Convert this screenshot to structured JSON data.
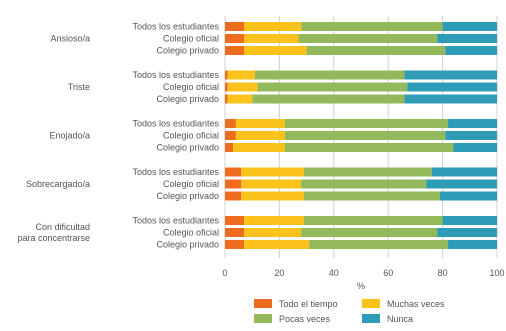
{
  "chart_data": {
    "type": "bar",
    "orientation": "horizontal",
    "stacked": true,
    "xlabel": "%",
    "xlim": [
      0,
      100
    ],
    "x_ticks": [
      "0",
      "20",
      "40",
      "60",
      "80",
      "100"
    ],
    "grid": "vertical",
    "legend_position": "bottom",
    "groups": [
      {
        "label": [
          "Ansioso/a"
        ],
        "rows": [
          {
            "label": "Todos los estudiantes",
            "values": [
              7,
              21,
              52,
              20
            ]
          },
          {
            "label": "Colegio oficial",
            "values": [
              7,
              20,
              51,
              22
            ]
          },
          {
            "label": "Colegio privado",
            "values": [
              7,
              23,
              51,
              19
            ]
          }
        ]
      },
      {
        "label": [
          "Triste"
        ],
        "rows": [
          {
            "label": "Todos los estudiantes",
            "values": [
              1,
              10,
              55,
              34
            ]
          },
          {
            "label": "Colegio oficial",
            "values": [
              1,
              11,
              55,
              33
            ]
          },
          {
            "label": "Colegio privado",
            "values": [
              1,
              9,
              56,
              34
            ]
          }
        ]
      },
      {
        "label": [
          "Enojado/a"
        ],
        "rows": [
          {
            "label": "Todos los estudiantes",
            "values": [
              4,
              18,
              60,
              18
            ]
          },
          {
            "label": "Colegio oficial",
            "values": [
              4,
              18,
              59,
              19
            ]
          },
          {
            "label": "Colegio privado",
            "values": [
              3,
              19,
              62,
              16
            ]
          }
        ]
      },
      {
        "label": [
          "Sobrecargado/a"
        ],
        "rows": [
          {
            "label": "Todos los estudiantes",
            "values": [
              6,
              23,
              47,
              24
            ]
          },
          {
            "label": "Colegio oficial",
            "values": [
              6,
              22,
              46,
              26
            ]
          },
          {
            "label": "Colegio privado",
            "values": [
              6,
              23,
              50,
              21
            ]
          }
        ]
      },
      {
        "label": [
          "Con dificultad",
          "para concentrarse"
        ],
        "rows": [
          {
            "label": "Todos los estudiantes",
            "values": [
              7,
              22,
              51,
              20
            ]
          },
          {
            "label": "Colegio oficial",
            "values": [
              7,
              21,
              50,
              22
            ]
          },
          {
            "label": "Colegio privado",
            "values": [
              7,
              24,
              51,
              18
            ]
          }
        ]
      }
    ],
    "series": [
      {
        "name": "Todo el tiempo",
        "color": "#ee6c1d"
      },
      {
        "name": "Muchas veces",
        "color": "#fbc21b"
      },
      {
        "name": "Pocas veces",
        "color": "#93b95a"
      },
      {
        "name": "Nunca",
        "color": "#2e9cb6"
      }
    ]
  }
}
